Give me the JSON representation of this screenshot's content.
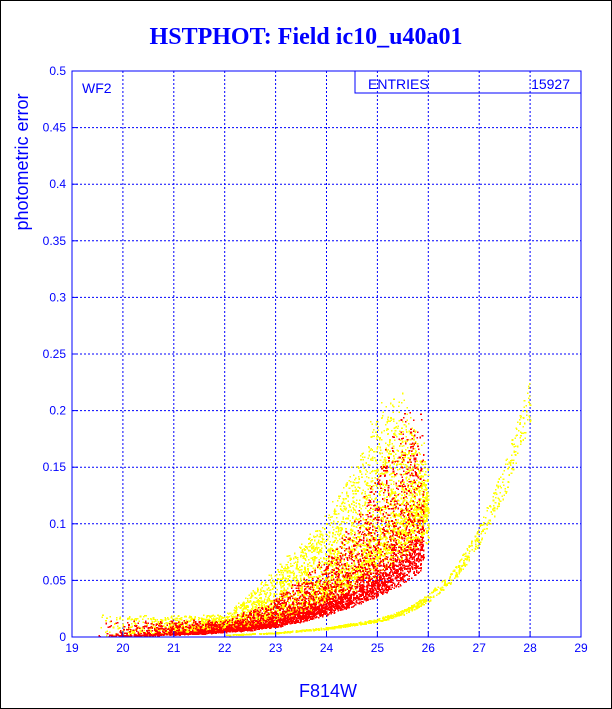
{
  "title": "HSTPHOT: Field ic10_u40a01",
  "chart_data": {
    "type": "scatter",
    "title": "HSTPHOT: Field ic10_u40a01",
    "xlabel": "F814W",
    "ylabel": "photometric error",
    "xlim": [
      19,
      29
    ],
    "ylim": [
      0,
      0.5
    ],
    "x_ticks": [
      "19",
      "20",
      "21",
      "22",
      "23",
      "24",
      "25",
      "26",
      "27",
      "28",
      "29"
    ],
    "y_ticks": [
      "0",
      "0.05",
      "0.1",
      "0.15",
      "0.2",
      "0.25",
      "0.3",
      "0.35",
      "0.4",
      "0.45",
      "0.5"
    ],
    "grid": true,
    "panel_label": "WF2",
    "stats_box": {
      "label": "ENTRIES",
      "value": "15927"
    },
    "colors": {
      "axis": "#0000ff",
      "grid": "#0000ff",
      "series_a": "#ff0000",
      "series_b": "#ffff00"
    },
    "series": [
      {
        "color": "#ff0000",
        "trend": {
          "x": [
            19.6,
            20.5,
            21.5,
            22.5,
            23.0,
            23.5,
            24.0,
            24.5,
            25.0,
            25.5,
            25.9
          ],
          "y": [
            0.001,
            0.002,
            0.004,
            0.008,
            0.012,
            0.018,
            0.026,
            0.036,
            0.048,
            0.062,
            0.08
          ]
        },
        "upper_envelope": {
          "x": [
            22.0,
            23.0,
            24.0,
            24.5,
            25.0,
            25.5,
            25.9
          ],
          "y": [
            0.015,
            0.035,
            0.07,
            0.1,
            0.15,
            0.2,
            0.19
          ]
        }
      },
      {
        "color": "#ffff00",
        "trend": {
          "x": [
            19.6,
            20.5,
            21.5,
            22.5,
            23.0,
            23.5,
            24.0,
            24.5,
            25.0,
            25.5,
            25.9
          ],
          "y": [
            0.001,
            0.002,
            0.005,
            0.011,
            0.017,
            0.026,
            0.038,
            0.053,
            0.07,
            0.09,
            0.11
          ]
        },
        "upper_envelope": {
          "x": [
            22.0,
            23.0,
            24.0,
            24.5,
            25.0,
            25.5,
            26.0
          ],
          "y": [
            0.02,
            0.06,
            0.11,
            0.15,
            0.2,
            0.21,
            0.15
          ]
        },
        "secondary_sequence": {
          "x": [
            22.0,
            23.0,
            24.0,
            25.0,
            25.5,
            26.0,
            26.5,
            27.0,
            27.5,
            28.0
          ],
          "y": [
            0.002,
            0.004,
            0.008,
            0.015,
            0.022,
            0.035,
            0.055,
            0.09,
            0.14,
            0.21
          ]
        }
      }
    ]
  }
}
